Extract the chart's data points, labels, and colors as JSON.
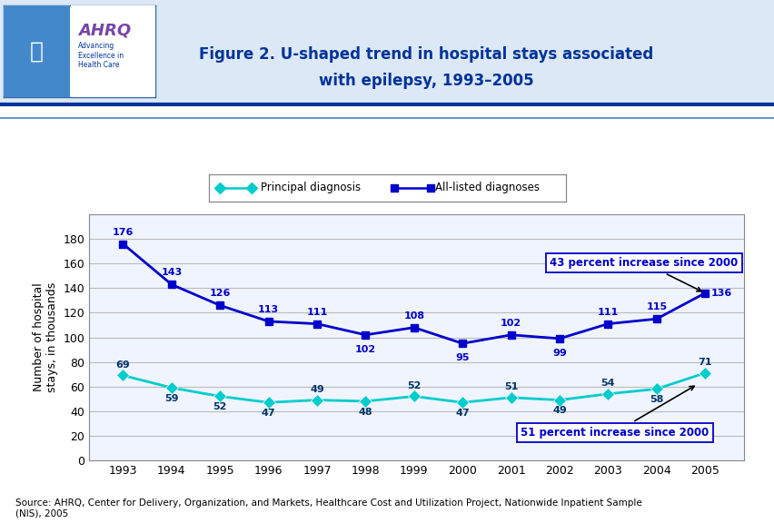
{
  "years": [
    1993,
    1994,
    1995,
    1996,
    1997,
    1998,
    1999,
    2000,
    2001,
    2002,
    2003,
    2004,
    2005
  ],
  "principal_diagnosis": [
    69,
    59,
    52,
    47,
    49,
    48,
    52,
    47,
    51,
    49,
    54,
    58,
    71
  ],
  "all_listed_diagnoses": [
    176,
    143,
    126,
    113,
    111,
    102,
    108,
    95,
    102,
    99,
    111,
    115,
    136
  ],
  "principal_color": "#00CCCC",
  "all_listed_color": "#0000CC",
  "title_line1": "Figure 2. U-shaped trend in hospital stays associated",
  "title_line2": "with epilepsy, 1993–2005",
  "ylabel": "Number of hospital\nstays, in thousands",
  "ylim": [
    0,
    200
  ],
  "yticks": [
    0,
    20,
    40,
    60,
    80,
    100,
    120,
    140,
    160,
    180
  ],
  "annotation_all": "43 percent increase since 2000",
  "annotation_principal": "51 percent increase since 2000",
  "source_text": "Source: AHRQ, Center for Delivery, Organization, and Markets, Healthcare Cost and Utilization Project, Nationwide Inpatient Sample\n(NIS), 2005",
  "bg_color": "#FFFFFF",
  "header_bg": "#E8F4FF",
  "title_color": "#003399",
  "grid_color": "#BBBBBB",
  "legend_labels": [
    "Principal diagnosis",
    "All-listed diagnoses"
  ],
  "separator_color1": "#003399",
  "separator_color2": "#6699CC"
}
